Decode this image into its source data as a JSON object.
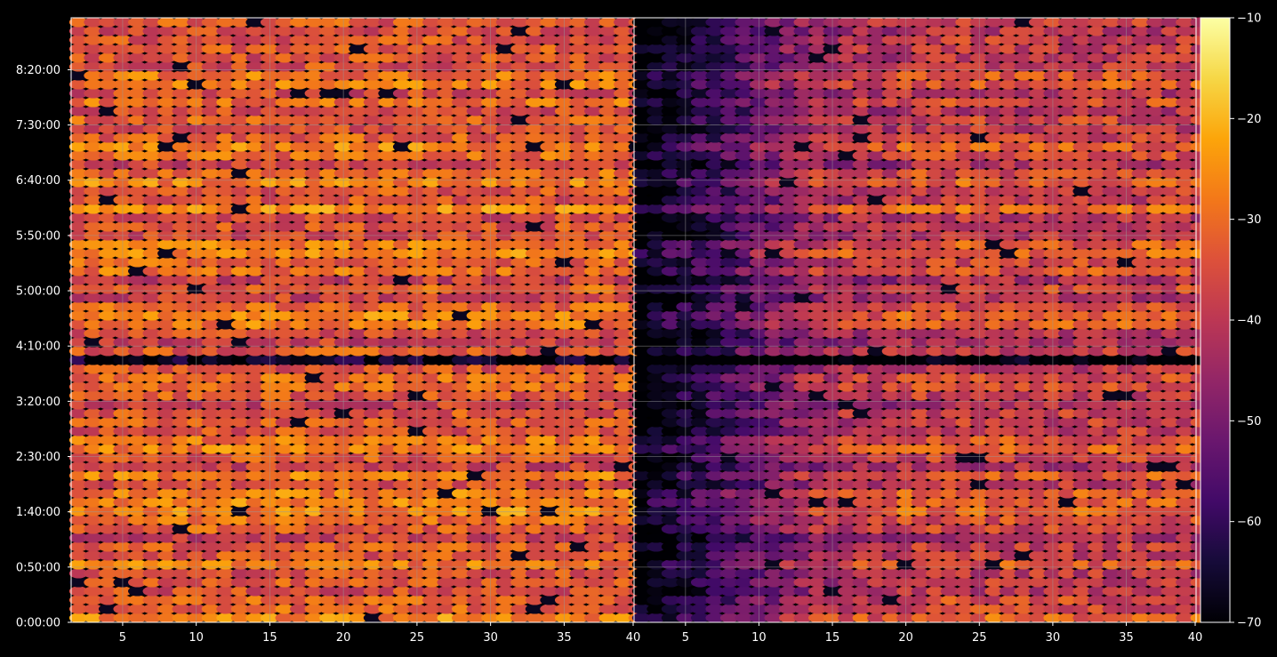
{
  "chart_data": {
    "type": "heatmap",
    "title": "",
    "xlabel": "",
    "ylabel": "",
    "panels": [
      {
        "name": "",
        "xlim": [
          1.5,
          39.75
        ],
        "xticks": [
          5,
          10,
          15,
          20,
          25,
          30,
          35,
          40
        ],
        "xtick_labels": [
          "5",
          "10",
          "15",
          "20",
          "25",
          "30",
          "35",
          "40"
        ],
        "character": "bright"
      },
      {
        "name": "",
        "xlim": [
          1.5,
          39.75
        ],
        "xticks": [
          5,
          10,
          15,
          20,
          25,
          30,
          35,
          40
        ],
        "xtick_labels": [
          "5",
          "10",
          "15",
          "20",
          "25",
          "30",
          "35",
          "40"
        ],
        "character": "dark-left"
      }
    ],
    "y_axis": {
      "range_seconds": [
        0,
        32820
      ],
      "ticks_seconds": [
        0,
        3000,
        6000,
        9000,
        12000,
        15000,
        18000,
        21000,
        24000,
        27000,
        30000
      ],
      "tick_labels": [
        "0:00:00",
        "0:50:00",
        "1:40:00",
        "2:30:00",
        "3:20:00",
        "4:10:00",
        "5:00:00",
        "5:50:00",
        "6:40:00",
        "7:30:00",
        "8:20:00"
      ]
    },
    "colorbar": {
      "colormap": "inferno",
      "range": [
        -70,
        -10
      ],
      "ticks": [
        -70,
        -60,
        -50,
        -40,
        -30,
        -20,
        -10
      ],
      "tick_labels": [
        "−70",
        "−60",
        "−50",
        "−40",
        "−30",
        "−20",
        "−10"
      ]
    },
    "grid": true,
    "rows": 68,
    "columns_per_panel": 39
  },
  "colors": {
    "background": "#000000",
    "axes_edge": "#ffffff",
    "grid": "#9a9a9a",
    "text": "#ffffff"
  }
}
